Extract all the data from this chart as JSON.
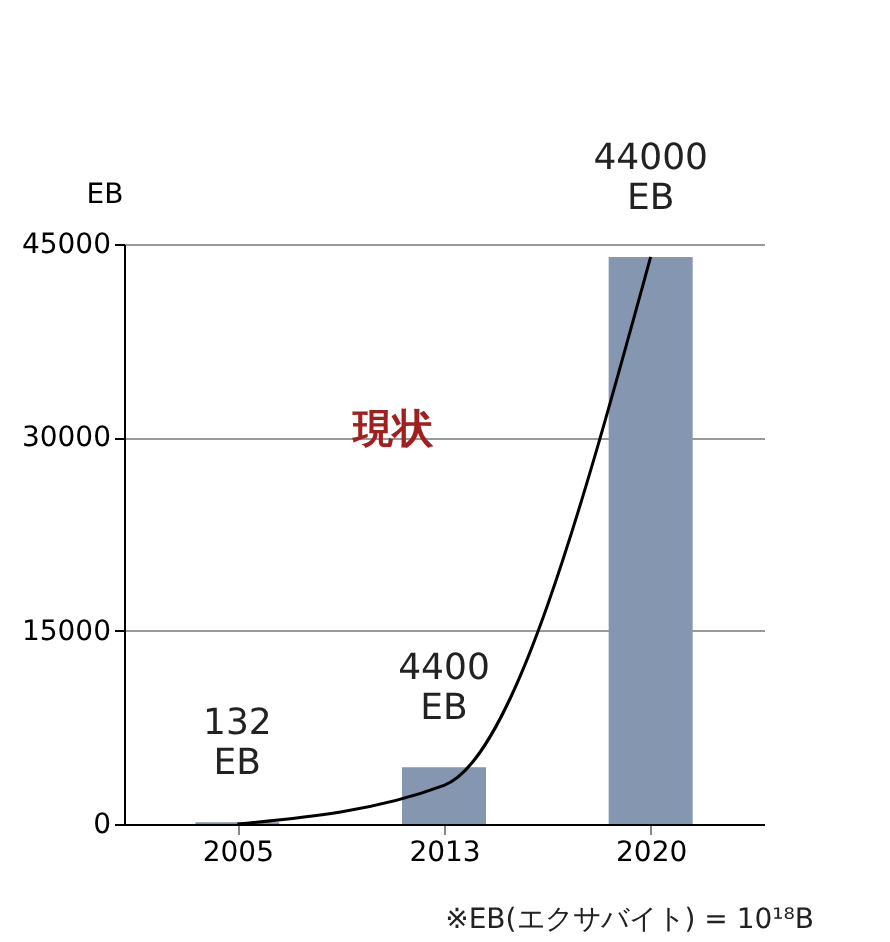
{
  "chart_data": {
    "type": "bar",
    "ylabel": "EB",
    "categories": [
      "2005",
      "2013",
      "2020"
    ],
    "series": [
      {
        "color": "#8496b0",
        "values": [
          132,
          4400,
          44000
        ],
        "value_labels": [
          "132 EB",
          "4400 EB",
          "44000 EB"
        ]
      },
      {
        "type": "line",
        "color": "#000000",
        "values": [
          0,
          3000,
          44000
        ]
      }
    ],
    "ylim": [
      0,
      45000
    ],
    "yticks": [
      0,
      15000,
      30000,
      45000
    ],
    "grid": "y",
    "annotations": [
      "現状",
      "※EB(エクサバイト) = 10¹⁸B"
    ]
  }
}
